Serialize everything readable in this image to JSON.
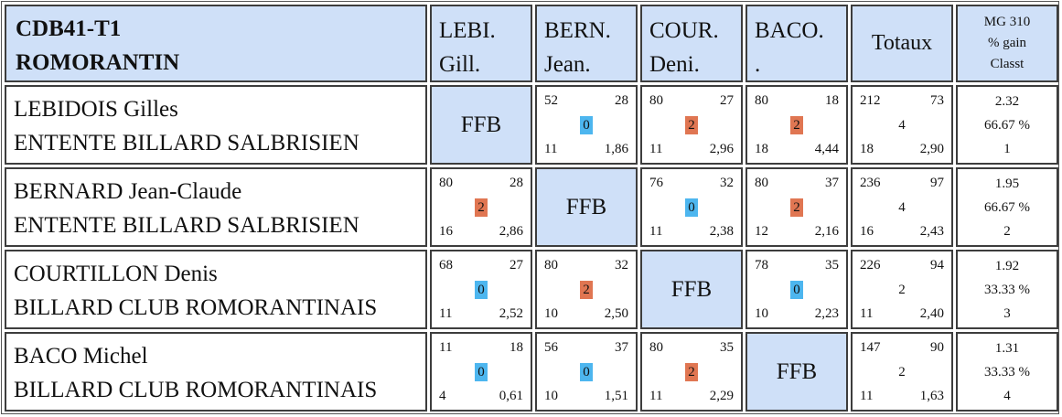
{
  "header": {
    "title": [
      "CDB41-T1",
      "ROMORANTIN"
    ],
    "players": [
      [
        "LEBI.",
        "Gill."
      ],
      [
        "BERN.",
        "Jean."
      ],
      [
        "COUR.",
        "Deni."
      ],
      [
        "BACO.",
        "."
      ]
    ],
    "totals": "Totaux",
    "summary": [
      "MG 310",
      "% gain",
      "Classt"
    ]
  },
  "rows": [
    {
      "name": "LEBIDOIS Gilles",
      "club": "ENTENTE BILLARD SALBRISIEN",
      "matches": [
        "FFB",
        {
          "tl": "52",
          "tr": "28",
          "badge": "0",
          "bl": "11",
          "br": "1,86"
        },
        {
          "tl": "80",
          "tr": "27",
          "badge": "2",
          "bl": "11",
          "br": "2,96"
        },
        {
          "tl": "80",
          "tr": "18",
          "badge": "2",
          "bl": "18",
          "br": "4,44"
        }
      ],
      "totals": {
        "tl": "212",
        "tr": "73",
        "mid": "4",
        "bl": "18",
        "br": "2,90"
      },
      "summary": [
        "2.32",
        "66.67 %",
        "1"
      ]
    },
    {
      "name": "BERNARD Jean-Claude",
      "club": "ENTENTE BILLARD SALBRISIEN",
      "matches": [
        {
          "tl": "80",
          "tr": "28",
          "badge": "2",
          "bl": "16",
          "br": "2,86"
        },
        "FFB",
        {
          "tl": "76",
          "tr": "32",
          "badge": "0",
          "bl": "11",
          "br": "2,38"
        },
        {
          "tl": "80",
          "tr": "37",
          "badge": "2",
          "bl": "12",
          "br": "2,16"
        }
      ],
      "totals": {
        "tl": "236",
        "tr": "97",
        "mid": "4",
        "bl": "16",
        "br": "2,43"
      },
      "summary": [
        "1.95",
        "66.67 %",
        "2"
      ]
    },
    {
      "name": "COURTILLON Denis",
      "club": "BILLARD CLUB ROMORANTINAIS",
      "matches": [
        {
          "tl": "68",
          "tr": "27",
          "badge": "0",
          "bl": "11",
          "br": "2,52"
        },
        {
          "tl": "80",
          "tr": "32",
          "badge": "2",
          "bl": "10",
          "br": "2,50"
        },
        "FFB",
        {
          "tl": "78",
          "tr": "35",
          "badge": "0",
          "bl": "10",
          "br": "2,23"
        }
      ],
      "totals": {
        "tl": "226",
        "tr": "94",
        "mid": "2",
        "bl": "11",
        "br": "2,40"
      },
      "summary": [
        "1.92",
        "33.33 %",
        "3"
      ]
    },
    {
      "name": "BACO Michel",
      "club": "BILLARD CLUB ROMORANTINAIS",
      "matches": [
        {
          "tl": "11",
          "tr": "18",
          "badge": "0",
          "bl": "4",
          "br": "0,61"
        },
        {
          "tl": "56",
          "tr": "37",
          "badge": "0",
          "bl": "10",
          "br": "1,51"
        },
        {
          "tl": "80",
          "tr": "35",
          "badge": "2",
          "bl": "11",
          "br": "2,29"
        },
        "FFB"
      ],
      "totals": {
        "tl": "147",
        "tr": "90",
        "mid": "2",
        "bl": "11",
        "br": "1,63"
      },
      "summary": [
        "1.31",
        "33.33 %",
        "4"
      ]
    }
  ]
}
